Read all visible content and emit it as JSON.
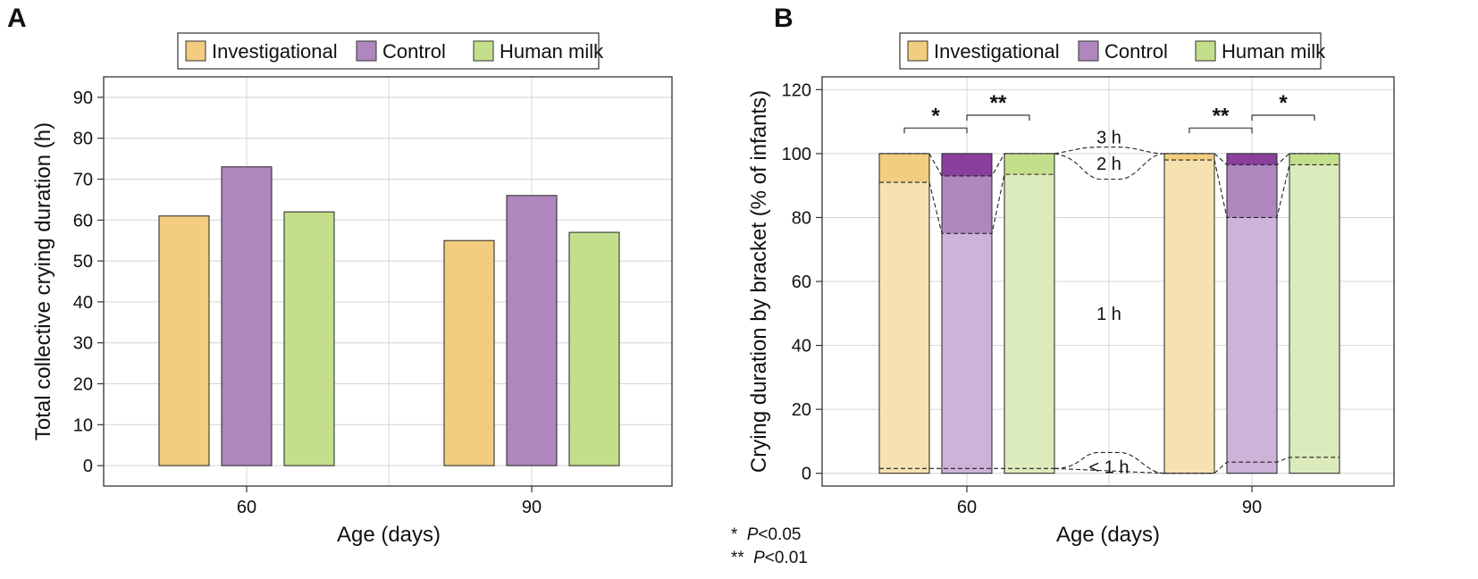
{
  "colors": {
    "investigational": "#f2cc7f",
    "investigational_light": "#f6e2b0",
    "control": "#b086bf",
    "control_light": "#cdb3d8",
    "control_dark": "#8a3f9c",
    "human_milk": "#c4df8c",
    "human_milk_light": "#dcebbb",
    "grid": "#d4d4d4",
    "frame": "#333333"
  },
  "chart_data": [
    {
      "panel": "A",
      "type": "bar",
      "legend": [
        "Investigational",
        "Control",
        "Human milk"
      ],
      "categories": [
        "60",
        "90"
      ],
      "series": [
        {
          "name": "Investigational",
          "values": [
            61,
            55
          ]
        },
        {
          "name": "Control",
          "values": [
            73,
            66
          ]
        },
        {
          "name": "Human milk",
          "values": [
            62,
            57
          ]
        }
      ],
      "xlabel": "Age (days)",
      "ylabel": "Total collective crying duration (h)",
      "ylim": [
        -5,
        95
      ],
      "yticks": [
        "0",
        "10",
        "20",
        "30",
        "40",
        "50",
        "60",
        "70",
        "80",
        "90"
      ],
      "grid": true,
      "legend_position": "top"
    },
    {
      "panel": "B",
      "type": "stacked-bar",
      "legend": [
        "Investigational",
        "Control",
        "Human milk"
      ],
      "categories": [
        "60",
        "90"
      ],
      "series": [
        {
          "name": "Investigational",
          "lt1": [
            1.5,
            0
          ],
          "h1": [
            91,
            98
          ],
          "h2": [
            100,
            100
          ],
          "total": [
            100,
            100
          ]
        },
        {
          "name": "Control",
          "lt1": [
            1.5,
            3.5
          ],
          "h1": [
            75,
            80
          ],
          "h2": [
            93,
            96.5
          ],
          "total": [
            100,
            100
          ]
        },
        {
          "name": "Human milk",
          "lt1": [
            1.5,
            5
          ],
          "h1": [
            93.5,
            96.5
          ],
          "h2": [
            100,
            100
          ],
          "total": [
            100,
            100
          ]
        }
      ],
      "bracket_labels": {
        "lt1": "< 1 h",
        "h1": "1 h",
        "h2": "2 h",
        "h3": "3 h"
      },
      "significance": [
        {
          "category": "60",
          "pair": "Investigational-Control",
          "label": "*"
        },
        {
          "category": "60",
          "pair": "Control-Human milk",
          "label": "**"
        },
        {
          "category": "90",
          "pair": "Investigational-Control",
          "label": "**"
        },
        {
          "category": "90",
          "pair": "Control-Human milk",
          "label": "*"
        }
      ],
      "xlabel": "Age (days)",
      "ylabel": "Crying duration by bracket (% of infants)",
      "ylim": [
        -4,
        124
      ],
      "yticks": [
        "0",
        "20",
        "40",
        "60",
        "80",
        "100",
        "120"
      ],
      "grid": true,
      "legend_position": "top"
    }
  ],
  "panel_labels": {
    "a": "A",
    "b": "B"
  },
  "notes": {
    "sig1_stars": "*",
    "sig1_p": "P",
    "sig1_rest": "<0.05",
    "sig2_stars": "**",
    "sig2_p": "P",
    "sig2_rest": "<0.01"
  }
}
